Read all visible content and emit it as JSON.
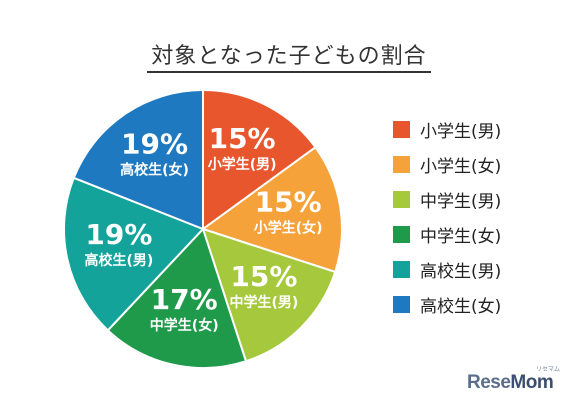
{
  "chart_data": {
    "type": "pie",
    "title": "対象となった子どもの割合",
    "categories": [
      "小学生(男)",
      "小学生(女)",
      "中学生(男)",
      "中学生(女)",
      "高校生(男)",
      "高校生(女)"
    ],
    "values": [
      15,
      15,
      15,
      17,
      19,
      19
    ],
    "value_labels": [
      "15%",
      "15%",
      "15%",
      "17%",
      "19%",
      "19%"
    ],
    "colors": [
      "#e8562e",
      "#f6a23a",
      "#a6c83c",
      "#1f9a4a",
      "#14a39a",
      "#1f79c1"
    ],
    "legend_position": "right"
  },
  "legend": {
    "items": [
      {
        "label": "小学生(男)",
        "color": "#e8562e"
      },
      {
        "label": "小学生(女)",
        "color": "#f6a23a"
      },
      {
        "label": "中学生(男)",
        "color": "#a6c83c"
      },
      {
        "label": "中学生(女)",
        "color": "#1f9a4a"
      },
      {
        "label": "高校生(男)",
        "color": "#14a39a"
      },
      {
        "label": "高校生(女)",
        "color": "#1f79c1"
      }
    ]
  },
  "brand": {
    "prefix": "Rese",
    "suffix": "Mom",
    "tagline": "リセマム"
  }
}
